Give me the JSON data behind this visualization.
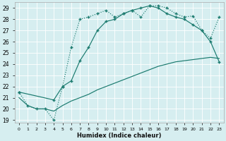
{
  "xlabel": "Humidex (Indice chaleur)",
  "bg_color": "#d6eef0",
  "grid_color": "#c8e8ec",
  "line_color": "#1a7a6e",
  "xlim": [
    -0.5,
    23.5
  ],
  "ylim": [
    18.8,
    29.5
  ],
  "xticks": [
    0,
    1,
    2,
    3,
    4,
    5,
    6,
    7,
    8,
    9,
    10,
    11,
    12,
    13,
    14,
    15,
    16,
    17,
    18,
    19,
    20,
    21,
    22,
    23
  ],
  "yticks": [
    19,
    20,
    21,
    22,
    23,
    24,
    25,
    26,
    27,
    28,
    29
  ],
  "line1_x": [
    0,
    1,
    2,
    3,
    4,
    5,
    6,
    7,
    8,
    9,
    10,
    11,
    12,
    13,
    14,
    15,
    16,
    17,
    18,
    19,
    20,
    21,
    22,
    23
  ],
  "line1_y": [
    21.5,
    20.3,
    20.0,
    20.0,
    19.0,
    22.0,
    25.5,
    28.0,
    28.2,
    28.5,
    28.8,
    28.2,
    28.5,
    28.8,
    28.2,
    29.2,
    29.2,
    29.0,
    28.5,
    28.2,
    28.3,
    27.0,
    26.3,
    28.2
  ],
  "line2_x": [
    0,
    4,
    5,
    6,
    7,
    8,
    9,
    10,
    11,
    12,
    13,
    14,
    15,
    16,
    17,
    18,
    19,
    20,
    21,
    22,
    23
  ],
  "line2_y": [
    21.5,
    20.8,
    22.0,
    22.5,
    24.3,
    25.5,
    27.0,
    27.8,
    28.0,
    28.5,
    28.8,
    29.0,
    29.2,
    29.0,
    28.5,
    28.2,
    28.0,
    27.5,
    27.0,
    26.0,
    24.2
  ],
  "line3_x": [
    0,
    1,
    2,
    3,
    4,
    5,
    6,
    7,
    8,
    9,
    10,
    11,
    12,
    13,
    14,
    15,
    16,
    17,
    18,
    19,
    20,
    21,
    22,
    23
  ],
  "line3_y": [
    21.0,
    20.3,
    20.0,
    20.0,
    19.8,
    20.3,
    20.7,
    21.0,
    21.3,
    21.7,
    22.0,
    22.3,
    22.6,
    22.9,
    23.2,
    23.5,
    23.8,
    24.0,
    24.2,
    24.3,
    24.4,
    24.5,
    24.6,
    24.5
  ]
}
